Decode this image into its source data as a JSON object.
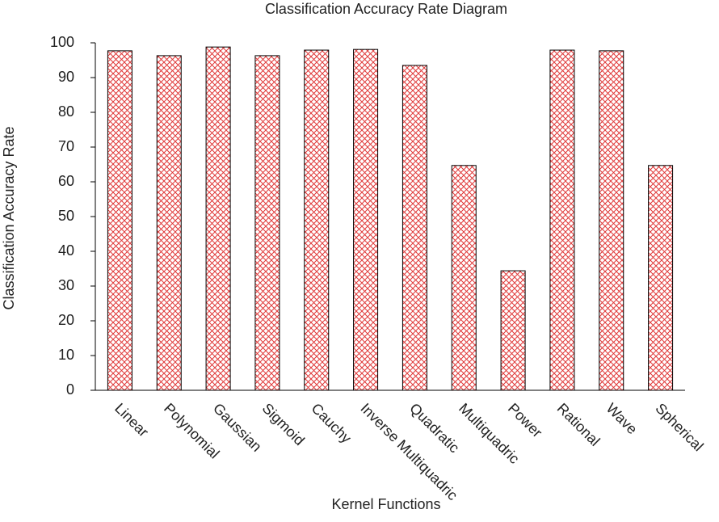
{
  "chart_data": {
    "type": "bar",
    "title": "Classification Accuracy Rate Diagram",
    "x_label": "Kernel Functions",
    "y_label": "Classification Accuracy Rate",
    "categories": [
      "Linear",
      "Polynomial",
      "Gaussian",
      "Sigmoid",
      "Cauchy",
      "Inverse Multiquadric",
      "Quadratic",
      "Multiquadric",
      "Power",
      "Rational",
      "Wave",
      "Spherical"
    ],
    "values": [
      97.7,
      96.3,
      98.8,
      96.3,
      97.9,
      98.1,
      93.5,
      64.7,
      34.4,
      97.9,
      97.7,
      64.7
    ],
    "color": "#e03a3a",
    "ylim": [
      0,
      100
    ],
    "yticks": [
      0,
      10,
      20,
      30,
      40,
      50,
      60,
      70,
      80,
      90,
      100
    ],
    "grid": false
  }
}
